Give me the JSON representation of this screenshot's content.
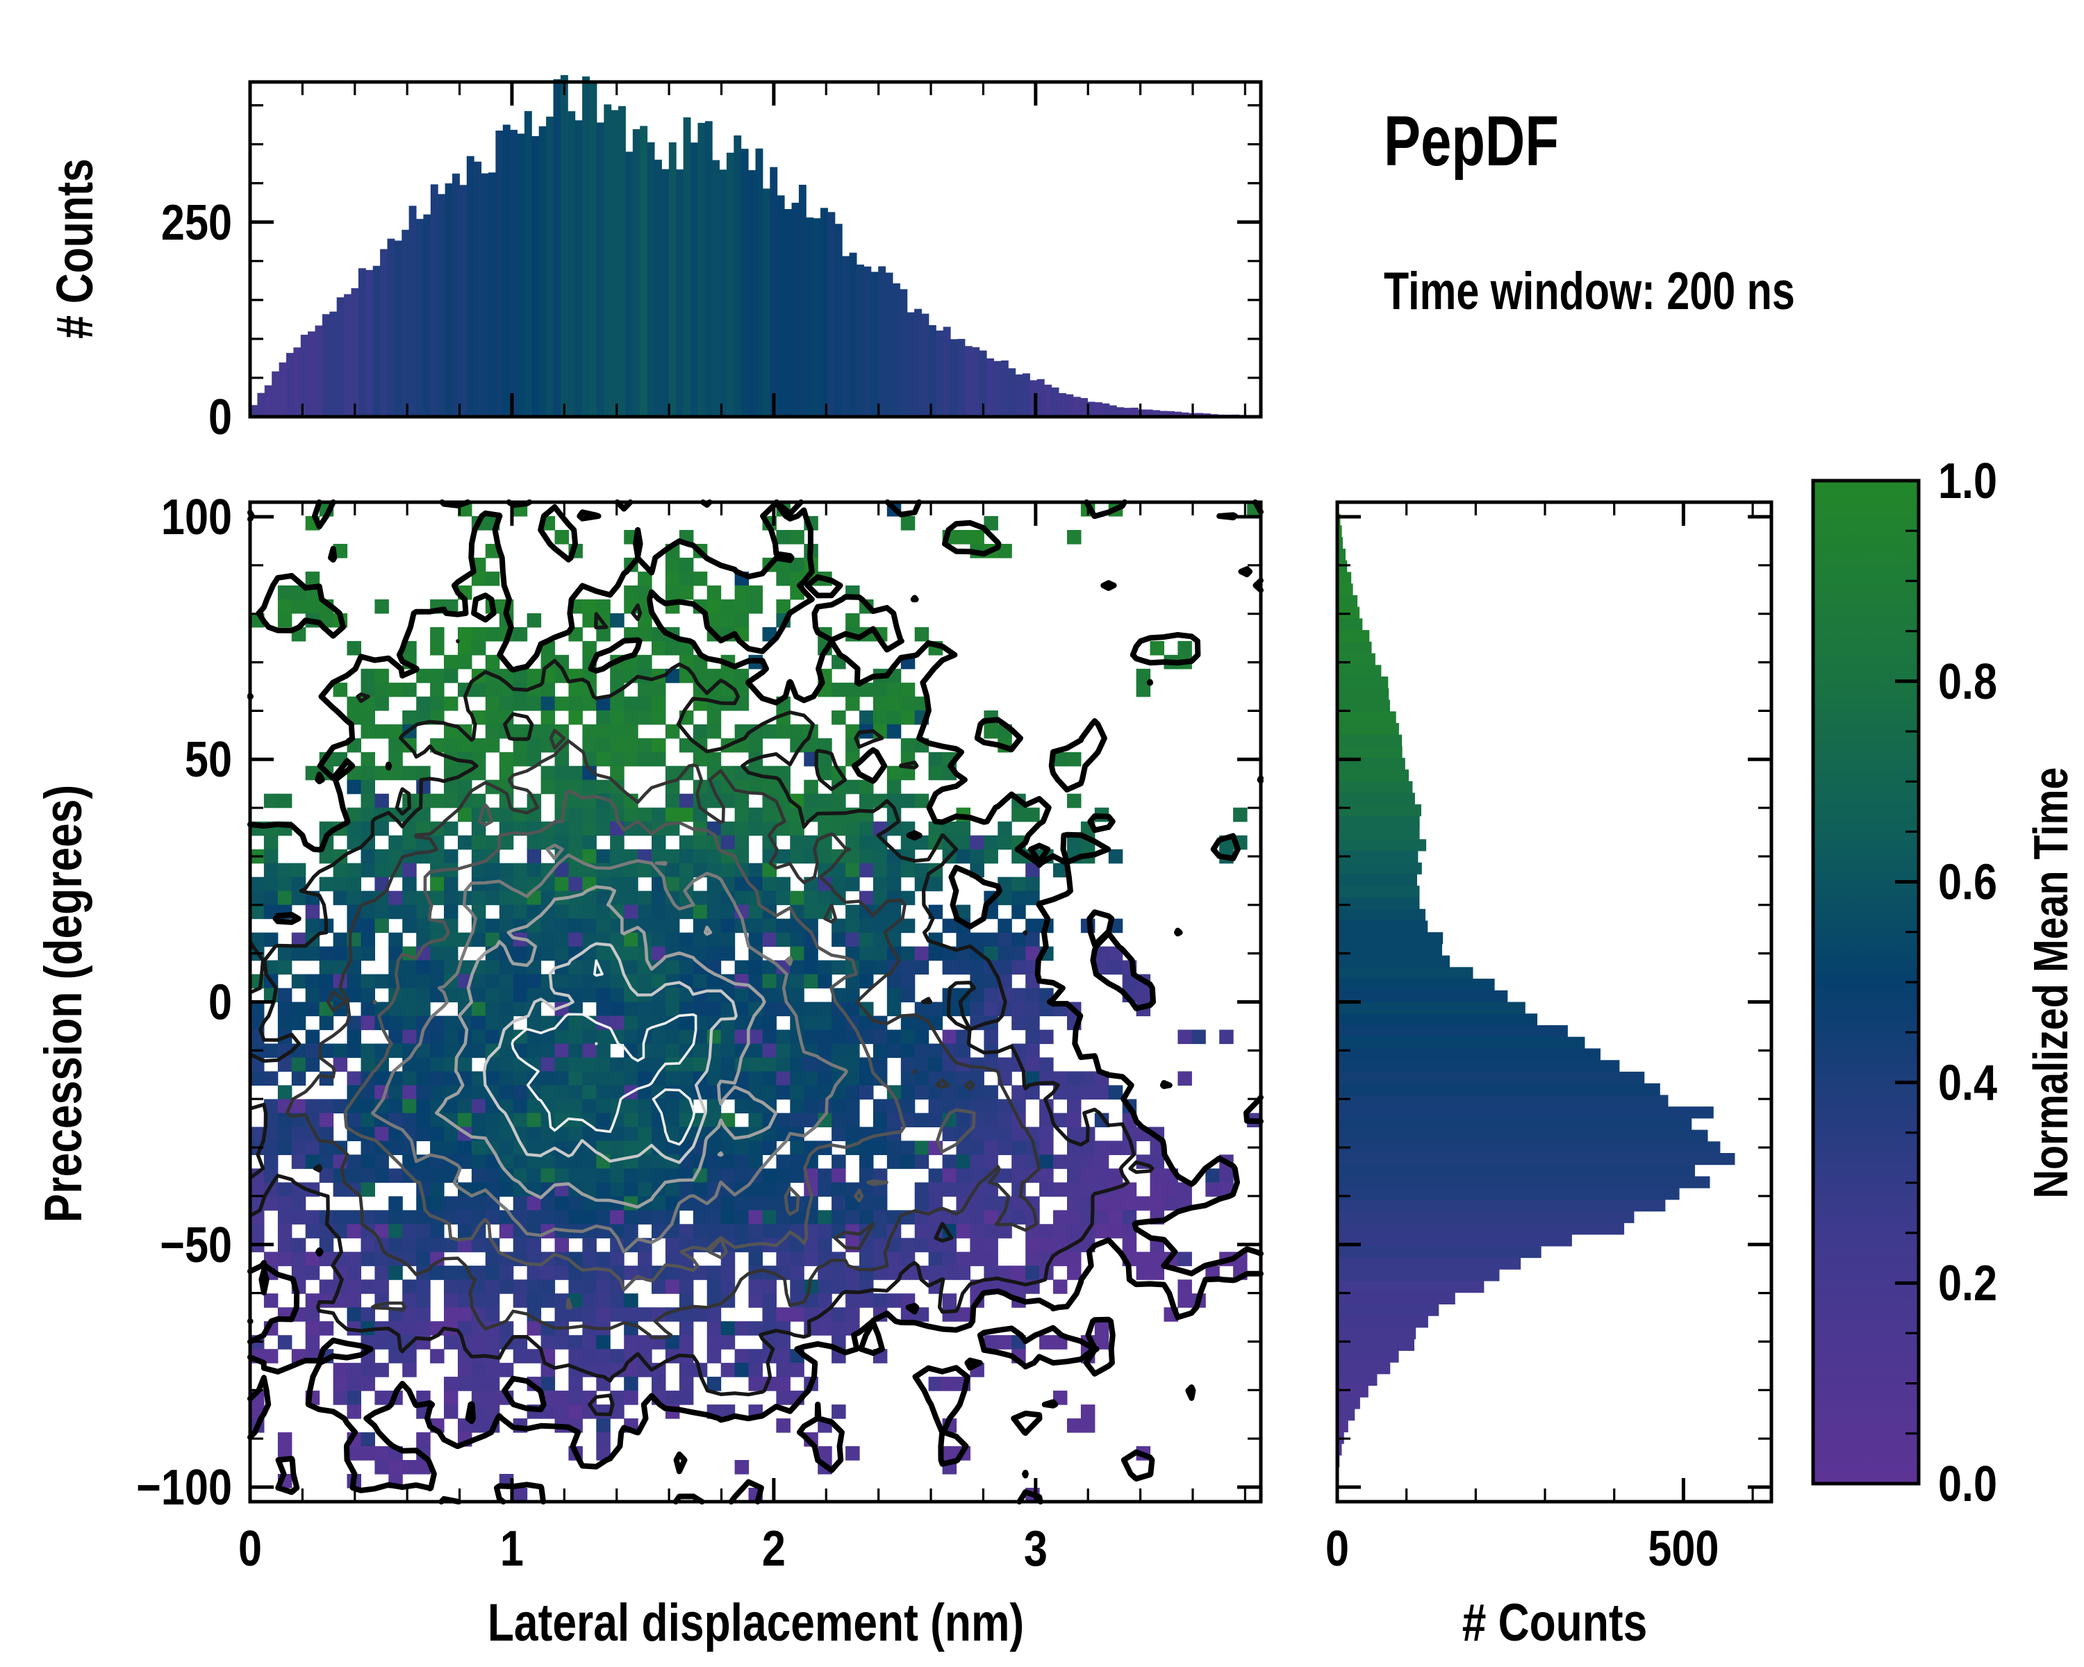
{
  "figure": {
    "title": "PepDF",
    "subtitle": "Time window: 200 ns",
    "background": "#ffffff"
  },
  "colormap": {
    "name": "purple-blue-green",
    "stops": [
      [
        0.0,
        "#5c3496"
      ],
      [
        0.25,
        "#3f3a8e"
      ],
      [
        0.5,
        "#06406e"
      ],
      [
        0.65,
        "#0f5f5a"
      ],
      [
        0.8,
        "#1a7342"
      ],
      [
        1.0,
        "#23872a"
      ]
    ]
  },
  "chart_data": [
    {
      "id": "main-heatmap",
      "type": "heatmap",
      "xlabel": "Lateral displacement (nm)",
      "ylabel": "Precession (degrees)",
      "xlim": [
        0,
        3.86
      ],
      "ylim": [
        -103,
        103
      ],
      "x_major_ticks": [
        0,
        1,
        2,
        3
      ],
      "x_major_labels": [
        "0",
        "1",
        "2",
        "3"
      ],
      "x_minor_step": 0.2,
      "y_major_ticks": [
        100,
        50,
        0,
        -50,
        -100
      ],
      "y_major_labels": [
        "100",
        "50",
        "0",
        "−50",
        "−100"
      ],
      "y_minor_step": 10,
      "grid": {
        "cols": 73,
        "rows": 72
      },
      "color_field": "normalized mean time: green (~0.9-1.0) above ~40 deg, teal 20-35 deg, blue -40..15 deg, purple below -55 deg, left edge and right wing (x>2.4, y<15) purple",
      "value_profile_y": [
        [
          100,
          0.93
        ],
        [
          60,
          0.9
        ],
        [
          45,
          0.82
        ],
        [
          35,
          0.72
        ],
        [
          25,
          0.62
        ],
        [
          15,
          0.56
        ],
        [
          5,
          0.52
        ],
        [
          -5,
          0.5
        ],
        [
          -20,
          0.46
        ],
        [
          -35,
          0.42
        ],
        [
          -45,
          0.36
        ],
        [
          -55,
          0.3
        ],
        [
          -65,
          0.24
        ],
        [
          -75,
          0.18
        ],
        [
          -85,
          0.13
        ],
        [
          -100,
          0.1
        ]
      ],
      "center_bump": {
        "x": 1.3,
        "y": -27,
        "sx": 0.75,
        "sy": 30,
        "amp": 0.14
      },
      "right_wing_purple": {
        "x_start": 2.35,
        "slope": 0.3,
        "max": 0.32
      },
      "left_edge_purple": {
        "x_end": 0.5,
        "strength": 0.45
      },
      "density": {
        "main": {
          "cx": 1.35,
          "cy": -15,
          "sx": 0.72,
          "sy_up": 42,
          "sy_down": 33
        },
        "wing": {
          "cx": 2.9,
          "cy": -32,
          "sx": 0.55,
          "sy": 24,
          "amp": 0.25
        },
        "noise_low": 0.1,
        "noise_high": 0.06,
        "occupied_threshold": 0.07
      },
      "contours": {
        "levels": [
          0.07,
          0.17,
          0.3,
          0.44,
          0.58,
          0.72,
          0.84,
          0.93
        ],
        "colors": [
          "#000000",
          "#161616",
          "#333333",
          "#555555",
          "#7a7a7a",
          "#a0a0a0",
          "#c8c8c8",
          "#eeeeee"
        ],
        "widths": [
          8,
          5.2,
          4.6,
          4.6,
          4.6,
          4.6,
          4.2,
          3.6
        ]
      },
      "hole_probability": {
        "base": 0.4,
        "slope": 0.55,
        "min": 0.02,
        "max": 0.38
      }
    },
    {
      "id": "top-histogram",
      "type": "bar",
      "ylabel": "# Counts",
      "xlim": [
        0,
        3.86
      ],
      "ylim": [
        0,
        430
      ],
      "bins": 140,
      "y_major_ticks": [
        0,
        250
      ],
      "y_major_labels": [
        "0",
        "250"
      ],
      "y_minor_step": 50,
      "envelope": [
        [
          0,
          8
        ],
        [
          0.1,
          60
        ],
        [
          0.2,
          100
        ],
        [
          0.3,
          140
        ],
        [
          0.4,
          175
        ],
        [
          0.5,
          205
        ],
        [
          0.6,
          245
        ],
        [
          0.7,
          285
        ],
        [
          0.8,
          320
        ],
        [
          0.9,
          335
        ],
        [
          1.0,
          360
        ],
        [
          1.1,
          385
        ],
        [
          1.2,
          410
        ],
        [
          1.3,
          420
        ],
        [
          1.4,
          385
        ],
        [
          1.5,
          355
        ],
        [
          1.6,
          340
        ],
        [
          1.7,
          360
        ],
        [
          1.8,
          340
        ],
        [
          1.9,
          330
        ],
        [
          2.0,
          305
        ],
        [
          2.1,
          280
        ],
        [
          2.2,
          250
        ],
        [
          2.3,
          215
        ],
        [
          2.4,
          185
        ],
        [
          2.5,
          150
        ],
        [
          2.6,
          128
        ],
        [
          2.7,
          105
        ],
        [
          2.8,
          88
        ],
        [
          2.9,
          65
        ],
        [
          3.0,
          48
        ],
        [
          3.1,
          32
        ],
        [
          3.2,
          22
        ],
        [
          3.3,
          14
        ],
        [
          3.4,
          10
        ],
        [
          3.5,
          7
        ],
        [
          3.6,
          5
        ],
        [
          3.7,
          3
        ],
        [
          3.86,
          2
        ]
      ],
      "mean_time_profile": [
        [
          0,
          0.18
        ],
        [
          0.3,
          0.28
        ],
        [
          0.6,
          0.38
        ],
        [
          0.9,
          0.47
        ],
        [
          1.2,
          0.55
        ],
        [
          1.5,
          0.6
        ],
        [
          1.8,
          0.55
        ],
        [
          2.1,
          0.5
        ],
        [
          2.4,
          0.42
        ],
        [
          2.7,
          0.33
        ],
        [
          3.0,
          0.25
        ],
        [
          3.3,
          0.18
        ],
        [
          3.86,
          0.12
        ]
      ],
      "jitter": 0.09
    },
    {
      "id": "right-histogram",
      "type": "barh",
      "xlabel": "# Counts",
      "xlim": [
        0,
        627
      ],
      "ylim": [
        -103,
        103
      ],
      "bins": 86,
      "x_major_ticks": [
        0,
        500
      ],
      "x_major_labels": [
        "0",
        "500"
      ],
      "x_minor_step": 100,
      "envelope": [
        [
          103,
          2
        ],
        [
          95,
          8
        ],
        [
          88,
          18
        ],
        [
          80,
          32
        ],
        [
          72,
          55
        ],
        [
          65,
          75
        ],
        [
          58,
          85
        ],
        [
          50,
          95
        ],
        [
          44,
          110
        ],
        [
          38,
          128
        ],
        [
          33,
          122
        ],
        [
          28,
          116
        ],
        [
          22,
          120
        ],
        [
          16,
          138
        ],
        [
          10,
          160
        ],
        [
          5,
          198
        ],
        [
          0,
          258
        ],
        [
          -5,
          330
        ],
        [
          -10,
          400
        ],
        [
          -15,
          440
        ],
        [
          -20,
          490
        ],
        [
          -25,
          525
        ],
        [
          -30,
          560
        ],
        [
          -35,
          540
        ],
        [
          -40,
          500
        ],
        [
          -44,
          445
        ],
        [
          -48,
          360
        ],
        [
          -52,
          290
        ],
        [
          -56,
          235
        ],
        [
          -60,
          185
        ],
        [
          -65,
          142
        ],
        [
          -70,
          110
        ],
        [
          -75,
          80
        ],
        [
          -80,
          48
        ],
        [
          -85,
          24
        ],
        [
          -90,
          9
        ],
        [
          -95,
          3
        ],
        [
          -103,
          1
        ]
      ],
      "mean_time_profile": [
        [
          103,
          0.97
        ],
        [
          70,
          0.93
        ],
        [
          55,
          0.88
        ],
        [
          45,
          0.8
        ],
        [
          38,
          0.73
        ],
        [
          30,
          0.65
        ],
        [
          24,
          0.6
        ],
        [
          15,
          0.56
        ],
        [
          5,
          0.52
        ],
        [
          -5,
          0.5
        ],
        [
          -20,
          0.46
        ],
        [
          -32,
          0.42
        ],
        [
          -42,
          0.37
        ],
        [
          -48,
          0.32
        ],
        [
          -55,
          0.27
        ],
        [
          -65,
          0.21
        ],
        [
          -75,
          0.16
        ],
        [
          -85,
          0.12
        ],
        [
          -103,
          0.08
        ]
      ],
      "jitter": 0.07
    },
    {
      "id": "colorbar",
      "type": "colorbar",
      "label": "Normalized Mean Time",
      "lim": [
        0,
        1
      ],
      "major_ticks": [
        0,
        0.2,
        0.4,
        0.6,
        0.8,
        1.0
      ],
      "major_labels": [
        "0.0",
        "0.2",
        "0.4",
        "0.6",
        "0.8",
        "1.0"
      ],
      "minor_step": 0.05
    }
  ]
}
